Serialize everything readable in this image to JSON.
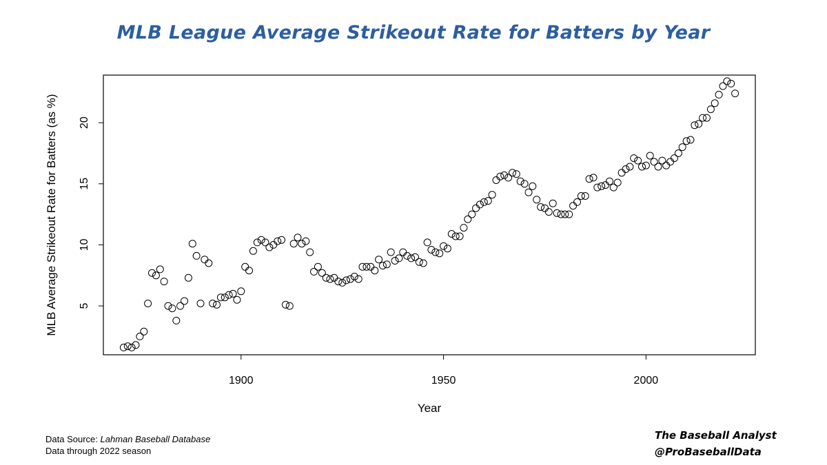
{
  "chart_data": {
    "type": "scatter",
    "title": "MLB League Average Strikeout Rate for Batters by Year",
    "xlabel": "Year",
    "ylabel": "MLB Average Strikeout Rate for Batters (as %)",
    "xlim": [
      1866,
      2027
    ],
    "ylim": [
      1.0,
      23.9
    ],
    "xticks": [
      1900,
      1950,
      2000
    ],
    "yticks": [
      5,
      10,
      15,
      20
    ],
    "grid": false,
    "marker": "open-circle",
    "series": [
      {
        "x": [
          1871,
          1872,
          1873,
          1874,
          1875,
          1876,
          1877,
          1878,
          1879,
          1880,
          1881,
          1882,
          1883,
          1884,
          1885,
          1886,
          1887,
          1888,
          1889,
          1890,
          1891,
          1892,
          1893,
          1894,
          1895,
          1896,
          1897,
          1898,
          1899,
          1900,
          1901,
          1902,
          1903,
          1904,
          1905,
          1906,
          1907,
          1908,
          1909,
          1910,
          1911,
          1912,
          1913,
          1914,
          1915,
          1916,
          1917,
          1918,
          1919,
          1920,
          1921,
          1922,
          1923,
          1924,
          1925,
          1926,
          1927,
          1928,
          1929,
          1930,
          1931,
          1932,
          1933,
          1934,
          1935,
          1936,
          1937,
          1938,
          1939,
          1940,
          1941,
          1942,
          1943,
          1944,
          1945,
          1946,
          1947,
          1948,
          1949,
          1950,
          1951,
          1952,
          1953,
          1954,
          1955,
          1956,
          1957,
          1958,
          1959,
          1960,
          1961,
          1962,
          1963,
          1964,
          1965,
          1966,
          1967,
          1968,
          1969,
          1970,
          1971,
          1972,
          1973,
          1974,
          1975,
          1976,
          1977,
          1978,
          1979,
          1980,
          1981,
          1982,
          1983,
          1984,
          1985,
          1986,
          1987,
          1988,
          1989,
          1990,
          1991,
          1992,
          1993,
          1994,
          1995,
          1996,
          1997,
          1998,
          1999,
          2000,
          2001,
          2002,
          2003,
          2004,
          2005,
          2006,
          2007,
          2008,
          2009,
          2010,
          2011,
          2012,
          2013,
          2014,
          2015,
          2016,
          2017,
          2018,
          2019,
          2020,
          2021,
          2022
        ],
        "y": [
          1.6,
          1.7,
          1.6,
          1.8,
          2.5,
          2.9,
          5.2,
          7.7,
          7.5,
          8.0,
          7.0,
          5.0,
          4.8,
          3.8,
          5.0,
          5.4,
          7.3,
          10.1,
          9.1,
          5.2,
          8.8,
          8.5,
          5.2,
          5.1,
          5.7,
          5.7,
          5.9,
          6.0,
          5.5,
          6.2,
          8.2,
          7.9,
          9.5,
          10.2,
          10.4,
          10.2,
          9.8,
          10.0,
          10.3,
          10.4,
          5.1,
          5.0,
          10.1,
          10.6,
          10.1,
          10.3,
          9.4,
          7.8,
          8.2,
          7.7,
          7.3,
          7.2,
          7.3,
          7.0,
          6.9,
          7.1,
          7.2,
          7.4,
          7.2,
          8.2,
          8.2,
          8.2,
          7.9,
          8.8,
          8.3,
          8.4,
          9.4,
          8.7,
          8.9,
          9.4,
          9.1,
          8.9,
          9.0,
          8.6,
          8.5,
          10.2,
          9.6,
          9.4,
          9.3,
          9.9,
          9.7,
          10.9,
          10.7,
          10.7,
          11.4,
          12.1,
          12.5,
          13.0,
          13.3,
          13.5,
          13.6,
          14.1,
          15.3,
          15.6,
          15.7,
          15.5,
          15.9,
          15.8,
          15.2,
          15.0,
          14.3,
          14.8,
          13.7,
          13.1,
          13.0,
          12.7,
          13.4,
          12.6,
          12.5,
          12.5,
          12.5,
          13.2,
          13.5,
          14.0,
          14.0,
          15.4,
          15.5,
          14.7,
          14.8,
          14.9,
          15.2,
          14.7,
          15.1,
          15.9,
          16.2,
          16.4,
          17.1,
          16.9,
          16.4,
          16.5,
          17.3,
          16.8,
          16.4,
          16.9,
          16.5,
          16.8,
          17.1,
          17.5,
          18.0,
          18.5,
          18.6,
          19.8,
          19.9,
          20.4,
          20.4,
          21.1,
          21.6,
          22.3,
          23.0,
          23.4,
          23.2,
          22.4
        ]
      }
    ]
  },
  "footer": {
    "source_label": "Data Source:",
    "source_value": "Lahman Baseball Database",
    "through_label": "Data through  2022 season"
  },
  "credit": {
    "line1": "The Baseball Analyst",
    "line2": "@ProBaseballData"
  }
}
